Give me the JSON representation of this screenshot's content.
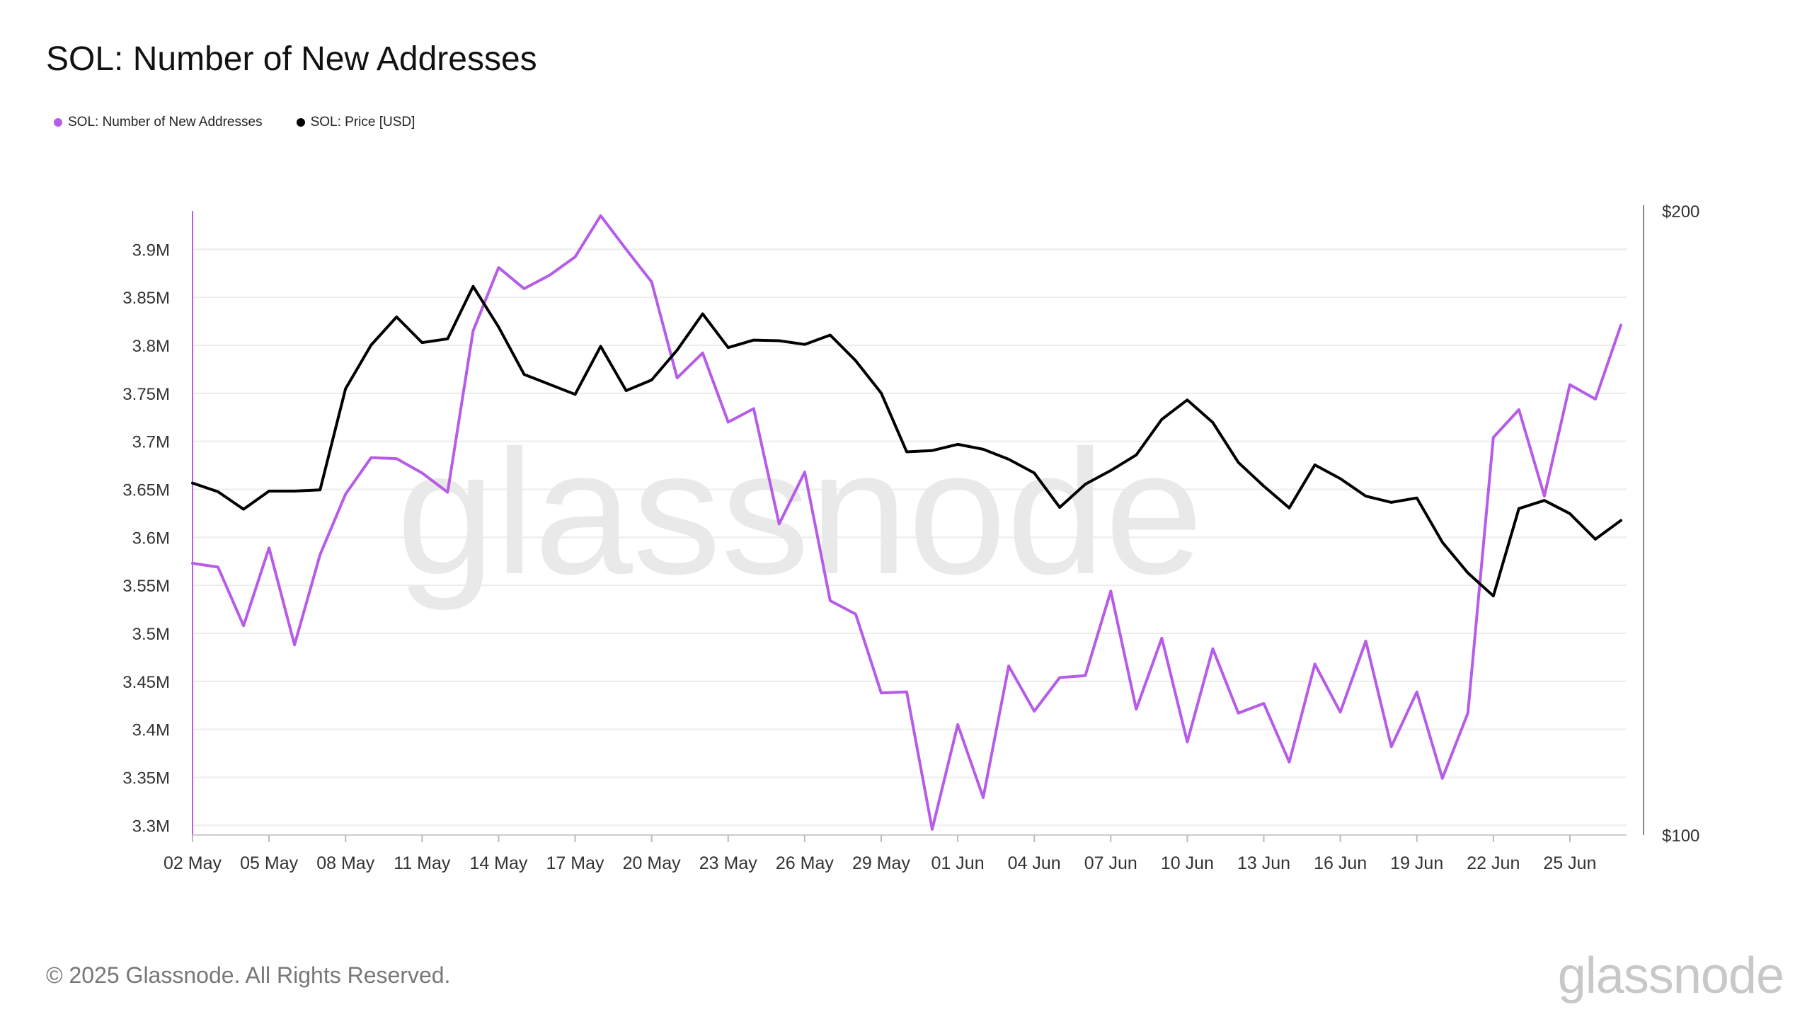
{
  "title": "SOL: Number of New Addresses",
  "legend": [
    {
      "label": "SOL: Number of New Addresses",
      "color": "#b65ce8"
    },
    {
      "label": "SOL: Price [USD]",
      "color": "#000000"
    }
  ],
  "watermark": "glassnode",
  "footer": {
    "copyright": "© 2025 Glassnode. All Rights Reserved.",
    "logo": "glassnode"
  },
  "chart_data": {
    "type": "line",
    "x": [
      "02 May",
      "03 May",
      "04 May",
      "05 May",
      "06 May",
      "07 May",
      "08 May",
      "09 May",
      "10 May",
      "11 May",
      "12 May",
      "13 May",
      "14 May",
      "15 May",
      "16 May",
      "17 May",
      "18 May",
      "19 May",
      "20 May",
      "21 May",
      "22 May",
      "23 May",
      "24 May",
      "25 May",
      "26 May",
      "27 May",
      "28 May",
      "29 May",
      "30 May",
      "31 May",
      "01 Jun",
      "02 Jun",
      "03 Jun",
      "04 Jun",
      "05 Jun",
      "06 Jun",
      "07 Jun",
      "08 Jun",
      "09 Jun",
      "10 Jun",
      "11 Jun",
      "12 Jun",
      "13 Jun",
      "14 Jun",
      "15 Jun",
      "16 Jun",
      "17 Jun",
      "18 Jun",
      "19 Jun",
      "20 Jun",
      "21 Jun",
      "22 Jun",
      "23 Jun",
      "24 Jun",
      "25 Jun",
      "26 Jun",
      "27 Jun"
    ],
    "x_tick_labels": [
      "02 May",
      "05 May",
      "08 May",
      "11 May",
      "14 May",
      "17 May",
      "20 May",
      "23 May",
      "26 May",
      "29 May",
      "01 Jun",
      "04 Jun",
      "07 Jun",
      "10 Jun",
      "13 Jun",
      "16 Jun",
      "19 Jun",
      "22 Jun",
      "25 Jun"
    ],
    "y_left": {
      "min": 3.29,
      "max": 3.94,
      "ticks": [
        3.3,
        3.35,
        3.4,
        3.45,
        3.5,
        3.55,
        3.6,
        3.65,
        3.7,
        3.75,
        3.8,
        3.85,
        3.9
      ],
      "tick_labels": [
        "3.3M",
        "3.35M",
        "3.4M",
        "3.45M",
        "3.5M",
        "3.55M",
        "3.6M",
        "3.65M",
        "3.7M",
        "3.75M",
        "3.8M",
        "3.85M",
        "3.9M"
      ]
    },
    "y_right": {
      "min": 100,
      "max": 200,
      "ticks": [
        100,
        200
      ],
      "tick_labels": [
        "$100",
        "$200"
      ]
    },
    "grid": true,
    "legend_position": "top-left",
    "series": [
      {
        "name": "SOL: Number of New Addresses",
        "axis": "left",
        "color": "#b65ce8",
        "values": [
          3.573,
          3.569,
          3.508,
          3.589,
          3.488,
          3.582,
          3.645,
          3.683,
          3.682,
          3.667,
          3.647,
          3.815,
          3.881,
          3.859,
          3.873,
          3.892,
          3.935,
          3.9,
          3.866,
          3.766,
          3.792,
          3.72,
          3.734,
          3.614,
          3.668,
          3.534,
          3.52,
          3.438,
          3.439,
          3.296,
          3.405,
          3.329,
          3.466,
          3.419,
          3.454,
          3.456,
          3.544,
          3.421,
          3.495,
          3.387,
          3.484,
          3.417,
          3.427,
          3.366,
          3.468,
          3.418,
          3.492,
          3.382,
          3.439,
          3.349,
          3.417,
          3.704,
          3.733,
          3.643,
          3.759,
          3.744,
          3.821
        ]
      },
      {
        "name": "SOL: Price [USD]",
        "axis": "right",
        "color": "#000000",
        "values": [
          156.4,
          155.0,
          152.2,
          155.1,
          155.1,
          155.3,
          171.5,
          178.5,
          183.0,
          178.9,
          179.5,
          187.9,
          181.4,
          173.8,
          172.2,
          170.6,
          178.3,
          171.2,
          172.9,
          177.7,
          183.5,
          178.1,
          179.3,
          179.2,
          178.6,
          180.1,
          176.0,
          170.8,
          161.4,
          161.6,
          162.6,
          161.8,
          160.2,
          158.0,
          152.5,
          156.2,
          158.4,
          160.9,
          166.6,
          169.7,
          166.1,
          159.7,
          155.9,
          152.4,
          159.3,
          157.1,
          154.3,
          153.3,
          154.0,
          146.9,
          142.0,
          138.3,
          152.3,
          153.6,
          151.5,
          147.4,
          150.4
        ]
      }
    ]
  }
}
